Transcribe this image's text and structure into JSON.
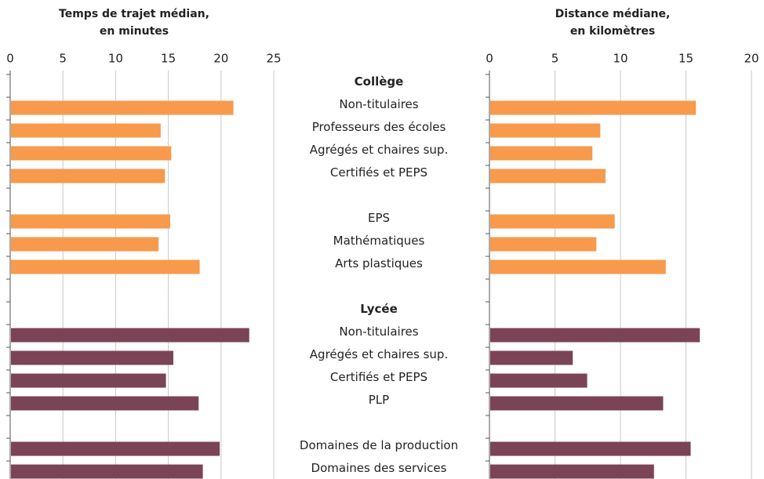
{
  "chart_data": [
    {
      "type": "bar",
      "orientation": "horizontal",
      "title": [
        "Temps de trajet médian,",
        "en minutes"
      ],
      "categories": [
        "Collège",
        "Non-titulaires",
        "Professeurs des écoles",
        "Agrégés et chaires sup.",
        "Certifiés et PEPS",
        null,
        "EPS",
        "Mathématiques",
        "Arts plastiques",
        null,
        "Lycée",
        "Non-titulaires",
        "Agrégés et chaires sup.",
        "Certifiés et PEPS",
        "PLP",
        null,
        "Domaines de la production",
        "Domaines des services"
      ],
      "values": [
        null,
        21.1,
        14.2,
        15.2,
        14.6,
        null,
        15.1,
        14.0,
        17.9,
        null,
        null,
        22.6,
        15.4,
        14.7,
        17.8,
        null,
        19.8,
        18.2
      ],
      "colors": [
        null,
        "#f79a4b",
        "#f79a4b",
        "#f79a4b",
        "#f79a4b",
        null,
        "#f79a4b",
        "#f79a4b",
        "#f79a4b",
        null,
        null,
        "#7a4456",
        "#7a4456",
        "#7a4456",
        "#7a4456",
        null,
        "#7a4456",
        "#7a4456"
      ],
      "xlim": [
        0,
        25
      ],
      "xticks": [
        0,
        5,
        10,
        15,
        20,
        25
      ],
      "grid": true
    },
    {
      "type": "bar",
      "orientation": "horizontal",
      "title": [
        "Distance médiane,",
        "en kilomètres"
      ],
      "values": [
        null,
        15.7,
        8.4,
        7.8,
        8.8,
        null,
        9.5,
        8.1,
        13.4,
        null,
        null,
        16.0,
        6.3,
        7.4,
        13.2,
        null,
        15.3,
        12.5
      ],
      "colors": [
        null,
        "#f79a4b",
        "#f79a4b",
        "#f79a4b",
        "#f79a4b",
        null,
        "#f79a4b",
        "#f79a4b",
        "#f79a4b",
        null,
        null,
        "#7a4456",
        "#7a4456",
        "#7a4456",
        "#7a4456",
        null,
        "#7a4456",
        "#7a4456"
      ],
      "xlim": [
        0,
        20
      ],
      "xticks": [
        0,
        5,
        10,
        15,
        20
      ],
      "grid": true
    }
  ]
}
